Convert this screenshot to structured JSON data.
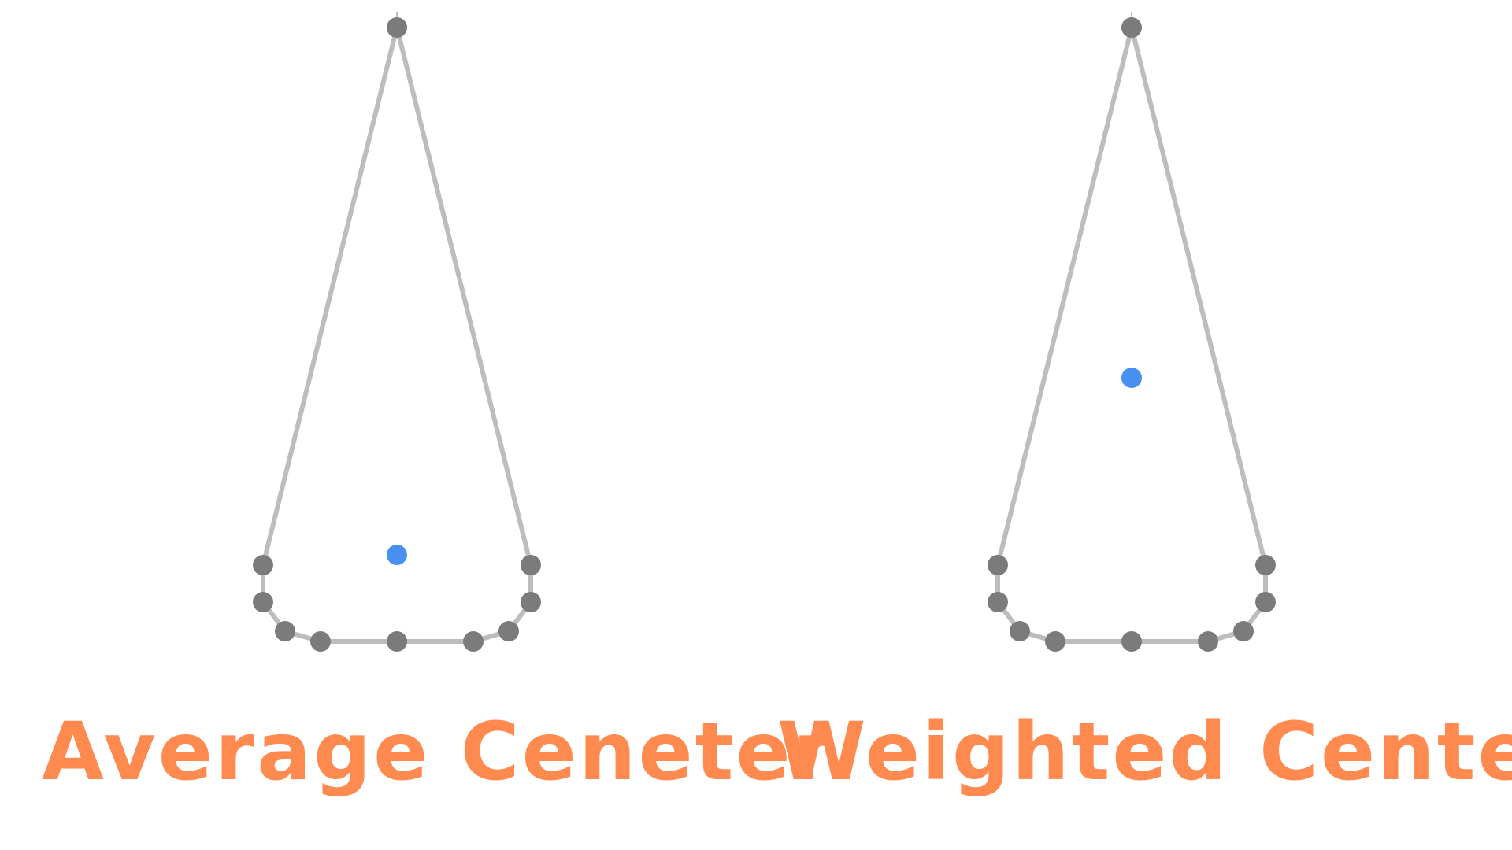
{
  "colors": {
    "outline": "#bdbdbd",
    "vertex": "#7b7b7b",
    "center": "#4a90f0",
    "caption": "#ff8a50"
  },
  "panels": [
    {
      "caption": "Average Ceneter",
      "center_type": "average"
    },
    {
      "caption": "Weighted Center",
      "center_type": "weighted"
    }
  ]
}
